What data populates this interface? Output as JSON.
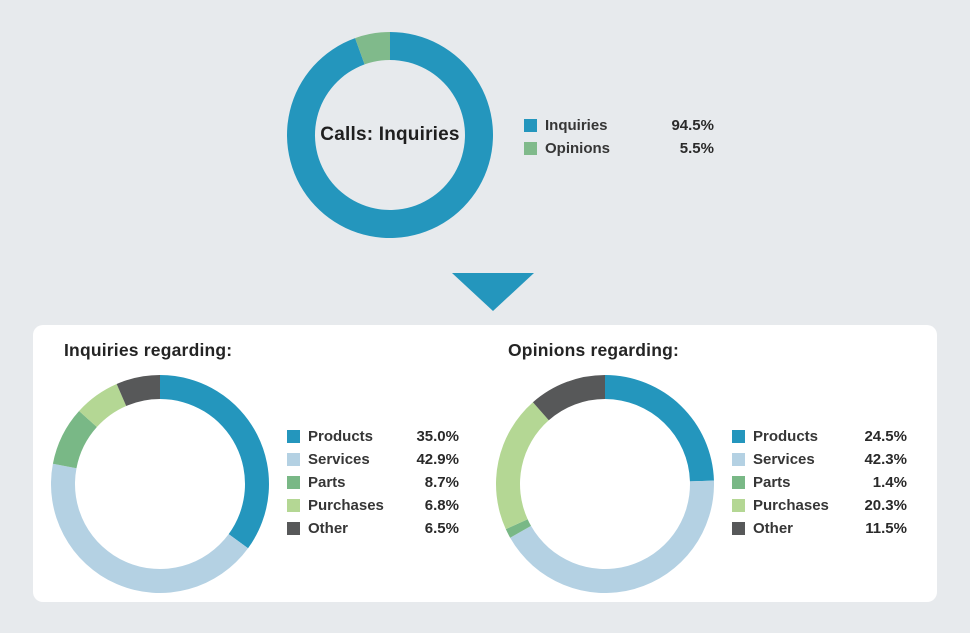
{
  "canvas": {
    "background": "#e7eaed",
    "card_background": "#ffffff"
  },
  "arrow_icon": {
    "shape": "triangle-down",
    "color": "#2496bd"
  },
  "chart_data": [
    {
      "type": "pie",
      "subtype": "donut",
      "title": "Calls: Inquiries",
      "center_label": "Calls: Inquiries",
      "labels": [
        "Inquiries",
        "Opinions"
      ],
      "values": [
        94.5,
        5.5
      ],
      "value_labels": [
        "94.5%",
        "5.5%"
      ],
      "colors": [
        "#2496bd",
        "#80ba8b"
      ],
      "legend_position": "right",
      "start_angle_deg": 0,
      "direction": "clockwise"
    },
    {
      "type": "pie",
      "subtype": "donut",
      "title": "Inquiries regarding:",
      "center_label": "",
      "labels": [
        "Products",
        "Services",
        "Parts",
        "Purchases",
        "Other"
      ],
      "values": [
        35.0,
        42.9,
        8.7,
        6.8,
        6.5
      ],
      "value_labels": [
        "35.0%",
        "42.9%",
        "8.7%",
        "6.8%",
        "6.5%"
      ],
      "colors": [
        "#2496bd",
        "#b4d1e3",
        "#79b886",
        "#b4d794",
        "#575859"
      ],
      "legend_position": "right",
      "start_angle_deg": 0,
      "direction": "clockwise"
    },
    {
      "type": "pie",
      "subtype": "donut",
      "title": "Opinions regarding:",
      "center_label": "",
      "labels": [
        "Products",
        "Services",
        "Parts",
        "Purchases",
        "Other"
      ],
      "values": [
        24.5,
        42.3,
        1.4,
        20.3,
        11.5
      ],
      "value_labels": [
        "24.5%",
        "42.3%",
        "1.4%",
        "20.3%",
        "11.5%"
      ],
      "colors": [
        "#2496bd",
        "#b4d1e3",
        "#79b886",
        "#b4d794",
        "#575859"
      ],
      "legend_position": "right",
      "start_angle_deg": 0,
      "direction": "clockwise"
    }
  ]
}
